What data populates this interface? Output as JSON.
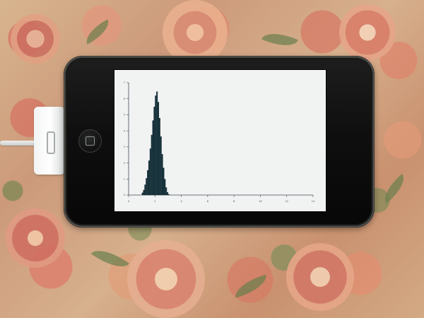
{
  "scene": {
    "background": "floral-fabric",
    "device": "portable-media-player",
    "screen_content": "histogram"
  },
  "colors": {
    "screen_background": "#f1f2f2",
    "histogram_fill": "#17313a",
    "axis": "#3e4d55",
    "device_body": "#090909",
    "fabric_base": "#d3aa84"
  },
  "chart_data": {
    "type": "bar",
    "categories": [
      1.05,
      1.15,
      1.25,
      1.35,
      1.45,
      1.55,
      1.65,
      1.75,
      1.85,
      1.95,
      2.05,
      2.15,
      2.25,
      2.35,
      2.45,
      2.55,
      2.65,
      2.75,
      2.85,
      2.95,
      3.05
    ],
    "values": [
      0.15,
      0.32,
      0.65,
      1.05,
      1.55,
      2.15,
      2.9,
      3.75,
      4.65,
      5.5,
      6.2,
      6.45,
      5.8,
      4.8,
      3.65,
      2.55,
      1.7,
      1.0,
      0.48,
      0.18,
      0.05
    ],
    "title": "",
    "xlabel": "",
    "ylabel": "",
    "xlim": [
      0,
      14
    ],
    "ylim": [
      0,
      7
    ],
    "xticks": [
      0,
      2,
      4,
      6,
      8,
      10,
      12,
      14
    ],
    "yticks": [
      0,
      1,
      2,
      3,
      4,
      5,
      6,
      7
    ],
    "grid": false,
    "legend": "none"
  }
}
